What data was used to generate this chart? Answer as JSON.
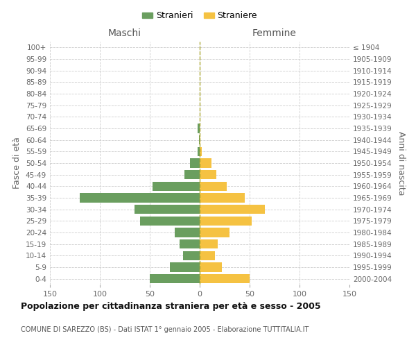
{
  "age_groups": [
    "0-4",
    "5-9",
    "10-14",
    "15-19",
    "20-24",
    "25-29",
    "30-34",
    "35-39",
    "40-44",
    "45-49",
    "50-54",
    "55-59",
    "60-64",
    "65-69",
    "70-74",
    "75-79",
    "80-84",
    "85-89",
    "90-94",
    "95-99",
    "100+"
  ],
  "birth_years": [
    "2000-2004",
    "1995-1999",
    "1990-1994",
    "1985-1989",
    "1980-1984",
    "1975-1979",
    "1970-1974",
    "1965-1969",
    "1960-1964",
    "1955-1959",
    "1950-1954",
    "1945-1949",
    "1940-1944",
    "1935-1939",
    "1930-1934",
    "1925-1929",
    "1920-1924",
    "1915-1919",
    "1910-1914",
    "1905-1909",
    "≤ 1904"
  ],
  "males": [
    50,
    30,
    17,
    20,
    25,
    60,
    65,
    120,
    47,
    15,
    10,
    2,
    1,
    2,
    0,
    0,
    0,
    0,
    0,
    0,
    0
  ],
  "females": [
    50,
    22,
    15,
    18,
    30,
    52,
    65,
    45,
    27,
    17,
    12,
    2,
    1,
    0,
    0,
    0,
    0,
    0,
    0,
    0,
    0
  ],
  "male_color": "#6a9e5f",
  "female_color": "#f5c242",
  "grid_color": "#cccccc",
  "title": "Popolazione per cittadinanza straniera per età e sesso - 2005",
  "subtitle": "COMUNE DI SAREZZO (BS) - Dati ISTAT 1° gennaio 2005 - Elaborazione TUTTITALIA.IT",
  "xlabel_left": "Maschi",
  "xlabel_right": "Femmine",
  "ylabel_left": "Fasce di età",
  "ylabel_right": "Anni di nascita",
  "xlim": 150,
  "legend_stranieri": "Stranieri",
  "legend_straniere": "Straniere"
}
